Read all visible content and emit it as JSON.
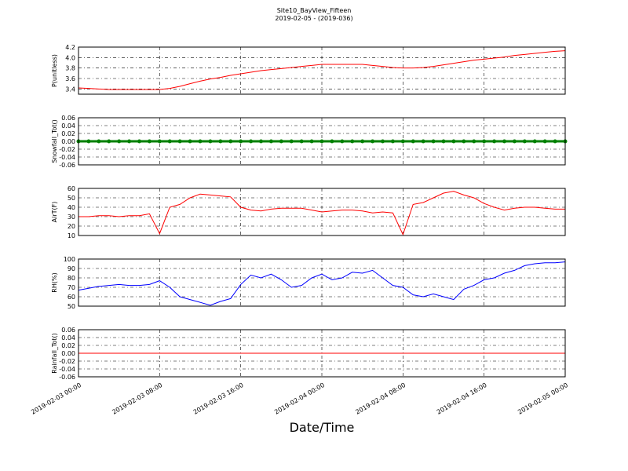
{
  "title": "Site10_BayView_Fifteen",
  "subtitle": "2019-02-05 - (2019-036)",
  "xlabel": "Date/Time",
  "chart_data": [
    {
      "type": "line",
      "ylabel": "P(unitless)",
      "color": "#ff0000",
      "grid": true,
      "x": [
        "2019-02-03 00:00",
        "2019-02-03 01:00",
        "2019-02-03 02:00",
        "2019-02-03 03:00",
        "2019-02-03 04:00",
        "2019-02-03 05:00",
        "2019-02-03 06:00",
        "2019-02-03 07:00",
        "2019-02-03 08:00",
        "2019-02-03 09:00",
        "2019-02-03 10:00",
        "2019-02-03 11:00",
        "2019-02-03 12:00",
        "2019-02-03 13:00",
        "2019-02-03 14:00",
        "2019-02-03 15:00",
        "2019-02-03 16:00",
        "2019-02-03 17:00",
        "2019-02-03 18:00",
        "2019-02-03 19:00",
        "2019-02-03 20:00",
        "2019-02-03 21:00",
        "2019-02-03 22:00",
        "2019-02-03 23:00",
        "2019-02-04 00:00",
        "2019-02-04 01:00",
        "2019-02-04 02:00",
        "2019-02-04 03:00",
        "2019-02-04 04:00",
        "2019-02-04 05:00",
        "2019-02-04 06:00",
        "2019-02-04 07:00",
        "2019-02-04 08:00",
        "2019-02-04 09:00",
        "2019-02-04 10:00",
        "2019-02-04 11:00",
        "2019-02-04 12:00",
        "2019-02-04 13:00",
        "2019-02-04 14:00",
        "2019-02-04 15:00",
        "2019-02-04 16:00",
        "2019-02-04 17:00",
        "2019-02-04 18:00",
        "2019-02-04 19:00",
        "2019-02-04 20:00",
        "2019-02-04 21:00",
        "2019-02-04 22:00",
        "2019-02-04 23:00",
        "2019-02-05 00:00"
      ],
      "values": [
        3.42,
        3.41,
        3.4,
        3.39,
        3.39,
        3.39,
        3.39,
        3.39,
        3.39,
        3.41,
        3.45,
        3.5,
        3.55,
        3.59,
        3.62,
        3.66,
        3.69,
        3.72,
        3.75,
        3.77,
        3.79,
        3.81,
        3.83,
        3.85,
        3.87,
        3.87,
        3.87,
        3.87,
        3.87,
        3.85,
        3.83,
        3.81,
        3.8,
        3.8,
        3.81,
        3.83,
        3.86,
        3.89,
        3.92,
        3.95,
        3.97,
        3.99,
        4.01,
        4.04,
        4.06,
        4.08,
        4.1,
        4.12,
        4.13
      ],
      "xlim": [
        "2019-02-03 00:00",
        "2019-02-05 00:00"
      ],
      "xticks": [
        "2019-02-03 00:00",
        "2019-02-03 08:00",
        "2019-02-03 16:00",
        "2019-02-04 00:00",
        "2019-02-04 08:00",
        "2019-02-04 16:00",
        "2019-02-05 00:00"
      ],
      "ylim": [
        3.3,
        4.2
      ],
      "yticks": [
        3.4,
        3.6,
        3.8,
        {
          "value": 4,
          "label": "4.0"
        },
        4.2
      ]
    },
    {
      "type": "line",
      "ylabel": "Snowfall_Tot()",
      "color": "#008000",
      "markers": true,
      "grid": true,
      "x": [
        "2019-02-03 00:00",
        "2019-02-03 01:00",
        "2019-02-03 02:00",
        "2019-02-03 03:00",
        "2019-02-03 04:00",
        "2019-02-03 05:00",
        "2019-02-03 06:00",
        "2019-02-03 07:00",
        "2019-02-03 08:00",
        "2019-02-03 09:00",
        "2019-02-03 10:00",
        "2019-02-03 11:00",
        "2019-02-03 12:00",
        "2019-02-03 13:00",
        "2019-02-03 14:00",
        "2019-02-03 15:00",
        "2019-02-03 16:00",
        "2019-02-03 17:00",
        "2019-02-03 18:00",
        "2019-02-03 19:00",
        "2019-02-03 20:00",
        "2019-02-03 21:00",
        "2019-02-03 22:00",
        "2019-02-03 23:00",
        "2019-02-04 00:00",
        "2019-02-04 01:00",
        "2019-02-04 02:00",
        "2019-02-04 03:00",
        "2019-02-04 04:00",
        "2019-02-04 05:00",
        "2019-02-04 06:00",
        "2019-02-04 07:00",
        "2019-02-04 08:00",
        "2019-02-04 09:00",
        "2019-02-04 10:00",
        "2019-02-04 11:00",
        "2019-02-04 12:00",
        "2019-02-04 13:00",
        "2019-02-04 14:00",
        "2019-02-04 15:00",
        "2019-02-04 16:00",
        "2019-02-04 17:00",
        "2019-02-04 18:00",
        "2019-02-04 19:00",
        "2019-02-04 20:00",
        "2019-02-04 21:00",
        "2019-02-04 22:00",
        "2019-02-04 23:00",
        "2019-02-05 00:00"
      ],
      "values": [
        0,
        0,
        0,
        0,
        0,
        0,
        0,
        0,
        0,
        0,
        0,
        0,
        0,
        0,
        0,
        0,
        0,
        0,
        0,
        0,
        0,
        0,
        0,
        0,
        0,
        0,
        0,
        0,
        0,
        0,
        0,
        0,
        0,
        0,
        0,
        0,
        0,
        0,
        0,
        0,
        0,
        0,
        0,
        0,
        0,
        0,
        0,
        0,
        0
      ],
      "xlim": [
        "2019-02-03 00:00",
        "2019-02-05 00:00"
      ],
      "xticks": [
        "2019-02-03 00:00",
        "2019-02-03 08:00",
        "2019-02-03 16:00",
        "2019-02-04 00:00",
        "2019-02-04 08:00",
        "2019-02-04 16:00",
        "2019-02-05 00:00"
      ],
      "ylim": [
        -0.06,
        0.06
      ],
      "yticks": [
        -0.06,
        -0.04,
        -0.02,
        {
          "value": 0,
          "label": "0.00"
        },
        0.02,
        0.04,
        0.06
      ]
    },
    {
      "type": "line",
      "ylabel": "AirT(F)",
      "color": "#ff0000",
      "grid": true,
      "x": [
        "2019-02-03 00:00",
        "2019-02-03 01:00",
        "2019-02-03 02:00",
        "2019-02-03 03:00",
        "2019-02-03 04:00",
        "2019-02-03 05:00",
        "2019-02-03 06:00",
        "2019-02-03 07:00",
        "2019-02-03 08:00",
        "2019-02-03 09:00",
        "2019-02-03 10:00",
        "2019-02-03 11:00",
        "2019-02-03 12:00",
        "2019-02-03 13:00",
        "2019-02-03 14:00",
        "2019-02-03 15:00",
        "2019-02-03 16:00",
        "2019-02-03 17:00",
        "2019-02-03 18:00",
        "2019-02-03 19:00",
        "2019-02-03 20:00",
        "2019-02-03 21:00",
        "2019-02-03 22:00",
        "2019-02-03 23:00",
        "2019-02-04 00:00",
        "2019-02-04 01:00",
        "2019-02-04 02:00",
        "2019-02-04 03:00",
        "2019-02-04 04:00",
        "2019-02-04 05:00",
        "2019-02-04 06:00",
        "2019-02-04 07:00",
        "2019-02-04 08:00",
        "2019-02-04 09:00",
        "2019-02-04 10:00",
        "2019-02-04 11:00",
        "2019-02-04 12:00",
        "2019-02-04 13:00",
        "2019-02-04 14:00",
        "2019-02-04 15:00",
        "2019-02-04 16:00",
        "2019-02-04 17:00",
        "2019-02-04 18:00",
        "2019-02-04 19:00",
        "2019-02-04 20:00",
        "2019-02-04 21:00",
        "2019-02-04 22:00",
        "2019-02-04 23:00",
        "2019-02-05 00:00"
      ],
      "values": [
        30,
        30,
        31,
        31,
        30,
        31,
        31,
        33,
        12,
        40,
        43,
        50,
        54,
        53,
        52,
        51,
        40,
        37,
        36,
        38,
        39,
        39,
        39,
        37,
        35,
        36,
        37,
        37,
        36,
        34,
        35,
        34,
        11,
        43,
        45,
        50,
        55,
        57,
        53,
        50,
        44,
        40,
        37,
        39,
        40,
        40,
        39,
        38,
        38
      ],
      "xlim": [
        "2019-02-03 00:00",
        "2019-02-05 00:00"
      ],
      "xticks": [
        "2019-02-03 00:00",
        "2019-02-03 08:00",
        "2019-02-03 16:00",
        "2019-02-04 00:00",
        "2019-02-04 08:00",
        "2019-02-04 16:00",
        "2019-02-05 00:00"
      ],
      "ylim": [
        10,
        60
      ],
      "yticks": [
        10,
        20,
        30,
        40,
        50,
        60
      ]
    },
    {
      "type": "line",
      "ylabel": "RH(%)",
      "color": "#0000ff",
      "grid": true,
      "x": [
        "2019-02-03 00:00",
        "2019-02-03 01:00",
        "2019-02-03 02:00",
        "2019-02-03 03:00",
        "2019-02-03 04:00",
        "2019-02-03 05:00",
        "2019-02-03 06:00",
        "2019-02-03 07:00",
        "2019-02-03 08:00",
        "2019-02-03 09:00",
        "2019-02-03 10:00",
        "2019-02-03 11:00",
        "2019-02-03 12:00",
        "2019-02-03 13:00",
        "2019-02-03 14:00",
        "2019-02-03 15:00",
        "2019-02-03 16:00",
        "2019-02-03 17:00",
        "2019-02-03 18:00",
        "2019-02-03 19:00",
        "2019-02-03 20:00",
        "2019-02-03 21:00",
        "2019-02-03 22:00",
        "2019-02-03 23:00",
        "2019-02-04 00:00",
        "2019-02-04 01:00",
        "2019-02-04 02:00",
        "2019-02-04 03:00",
        "2019-02-04 04:00",
        "2019-02-04 05:00",
        "2019-02-04 06:00",
        "2019-02-04 07:00",
        "2019-02-04 08:00",
        "2019-02-04 09:00",
        "2019-02-04 10:00",
        "2019-02-04 11:00",
        "2019-02-04 12:00",
        "2019-02-04 13:00",
        "2019-02-04 14:00",
        "2019-02-04 15:00",
        "2019-02-04 16:00",
        "2019-02-04 17:00",
        "2019-02-04 18:00",
        "2019-02-04 19:00",
        "2019-02-04 20:00",
        "2019-02-04 21:00",
        "2019-02-04 22:00",
        "2019-02-04 23:00",
        "2019-02-05 00:00"
      ],
      "values": [
        67,
        69,
        71,
        72,
        73,
        72,
        72,
        73,
        77,
        70,
        60,
        57,
        54,
        51,
        55,
        58,
        73,
        83,
        80,
        84,
        78,
        70,
        72,
        80,
        84,
        78,
        80,
        86,
        85,
        88,
        80,
        72,
        70,
        62,
        60,
        63,
        60,
        57,
        68,
        72,
        78,
        80,
        85,
        88,
        93,
        95,
        96,
        96,
        97
      ],
      "xlim": [
        "2019-02-03 00:00",
        "2019-02-05 00:00"
      ],
      "xticks": [
        "2019-02-03 00:00",
        "2019-02-03 08:00",
        "2019-02-03 16:00",
        "2019-02-04 00:00",
        "2019-02-04 08:00",
        "2019-02-04 16:00",
        "2019-02-05 00:00"
      ],
      "ylim": [
        50,
        100
      ],
      "yticks": [
        50,
        60,
        70,
        80,
        90,
        100
      ]
    },
    {
      "type": "line",
      "ylabel": "Rainfall_Tot()",
      "color": "#ff0000",
      "grid": true,
      "x": [
        "2019-02-03 00:00",
        "2019-02-03 01:00",
        "2019-02-03 02:00",
        "2019-02-03 03:00",
        "2019-02-03 04:00",
        "2019-02-03 05:00",
        "2019-02-03 06:00",
        "2019-02-03 07:00",
        "2019-02-03 08:00",
        "2019-02-03 09:00",
        "2019-02-03 10:00",
        "2019-02-03 11:00",
        "2019-02-03 12:00",
        "2019-02-03 13:00",
        "2019-02-03 14:00",
        "2019-02-03 15:00",
        "2019-02-03 16:00",
        "2019-02-03 17:00",
        "2019-02-03 18:00",
        "2019-02-03 19:00",
        "2019-02-03 20:00",
        "2019-02-03 21:00",
        "2019-02-03 22:00",
        "2019-02-03 23:00",
        "2019-02-04 00:00",
        "2019-02-04 01:00",
        "2019-02-04 02:00",
        "2019-02-04 03:00",
        "2019-02-04 04:00",
        "2019-02-04 05:00",
        "2019-02-04 06:00",
        "2019-02-04 07:00",
        "2019-02-04 08:00",
        "2019-02-04 09:00",
        "2019-02-04 10:00",
        "2019-02-04 11:00",
        "2019-02-04 12:00",
        "2019-02-04 13:00",
        "2019-02-04 14:00",
        "2019-02-04 15:00",
        "2019-02-04 16:00",
        "2019-02-04 17:00",
        "2019-02-04 18:00",
        "2019-02-04 19:00",
        "2019-02-04 20:00",
        "2019-02-04 21:00",
        "2019-02-04 22:00",
        "2019-02-04 23:00",
        "2019-02-05 00:00"
      ],
      "values": [
        0,
        0,
        0,
        0,
        0,
        0,
        0,
        0,
        0,
        0,
        0,
        0,
        0,
        0,
        0,
        0,
        0,
        0,
        0,
        0,
        0,
        0,
        0,
        0,
        0,
        0,
        0,
        0,
        0,
        0,
        0,
        0,
        0,
        0,
        0,
        0,
        0,
        0,
        0,
        0,
        0,
        0,
        0,
        0,
        0,
        0,
        0,
        0,
        0
      ],
      "xlim": [
        "2019-02-03 00:00",
        "2019-02-05 00:00"
      ],
      "xticks": [
        "2019-02-03 00:00",
        "2019-02-03 08:00",
        "2019-02-03 16:00",
        "2019-02-04 00:00",
        "2019-02-04 08:00",
        "2019-02-04 16:00",
        "2019-02-05 00:00"
      ],
      "ylim": [
        -0.06,
        0.06
      ],
      "yticks": [
        -0.06,
        -0.04,
        -0.02,
        {
          "value": 0,
          "label": "0.00"
        },
        0.02,
        0.04,
        0.06
      ]
    }
  ]
}
